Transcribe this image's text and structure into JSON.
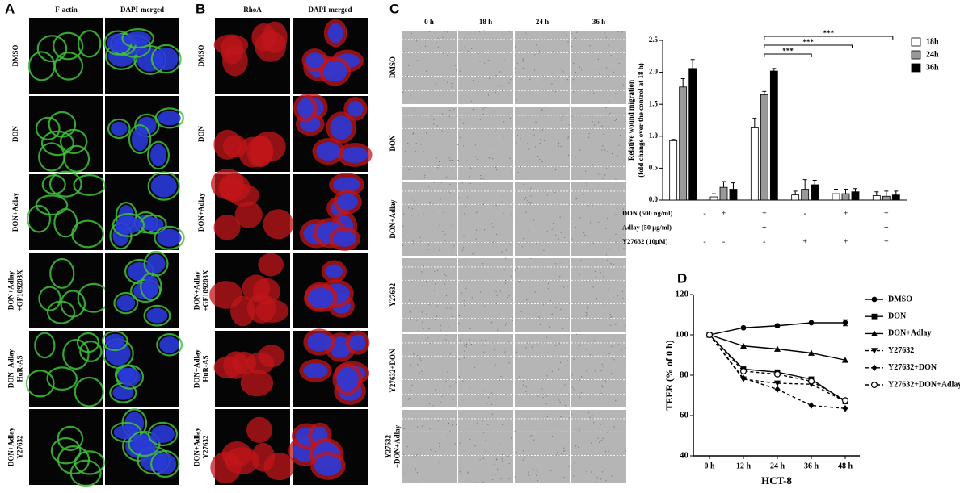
{
  "panel_a": {
    "letter": "A",
    "columns": [
      "F-actin",
      "DAPI-merged"
    ],
    "rows": [
      [
        "DMSO"
      ],
      [
        "DON"
      ],
      [
        "DON+Adlay"
      ],
      [
        "DON+Adlay",
        "+GF109203X"
      ],
      [
        "DON+Adlay",
        "HuR-AS"
      ],
      [
        "DON+Adlay",
        "Y27632"
      ]
    ]
  },
  "panel_b": {
    "letter": "B",
    "columns": [
      "RhoA",
      "DAPI-merged"
    ],
    "rows": [
      [
        "DMSO"
      ],
      [
        "DON"
      ],
      [
        "DON+Adlay"
      ],
      [
        "DON+Adlay",
        "+GF109203X"
      ],
      [
        "DON+Adlay",
        "HuR-AS"
      ],
      [
        "DON+Adlay",
        "Y27632"
      ]
    ]
  },
  "panel_c": {
    "letter": "C",
    "columns": [
      "0 h",
      "18 h",
      "24 h",
      "36 h"
    ],
    "rows": [
      [
        "DMSO"
      ],
      [
        "DON"
      ],
      [
        "DON+Adlay"
      ],
      [
        "Y27632"
      ],
      [
        "Y27632+DON"
      ],
      [
        "Y27632",
        "+DON+Adlay"
      ]
    ]
  },
  "panel_d": {
    "letter": "D"
  },
  "chart_data": [
    {
      "type": "bar",
      "ylabel": [
        "Relative wound migration",
        "(fold change over the control at 18 h)"
      ],
      "categories": [
        null,
        null,
        null,
        null,
        null,
        null
      ],
      "series": [
        {
          "name": "18h",
          "color": "#ffffff",
          "values": [
            0.93,
            0.05,
            1.13,
            0.08,
            0.1,
            0.07
          ],
          "errors": [
            0.02,
            0.05,
            0.15,
            0.06,
            0.07,
            0.06
          ]
        },
        {
          "name": "24h",
          "color": "#999999",
          "values": [
            1.77,
            0.2,
            1.65,
            0.17,
            0.1,
            0.06
          ],
          "errors": [
            0.13,
            0.09,
            0.05,
            0.15,
            0.07,
            0.08
          ]
        },
        {
          "name": "36h",
          "color": "#000000",
          "values": [
            2.06,
            0.17,
            2.02,
            0.24,
            0.13,
            0.08
          ],
          "errors": [
            0.14,
            0.1,
            0.04,
            0.07,
            0.05,
            0.06
          ]
        }
      ],
      "ylim": [
        0,
        2.5
      ],
      "yticks": [
        {
          "value": 0,
          "label": "0.0"
        },
        0.5,
        {
          "value": 1,
          "label": "1.0"
        },
        1.5,
        {
          "value": 2,
          "label": "2.0"
        },
        2.5
      ],
      "legend": "upper right",
      "annotations": [
        "***",
        "***",
        "***"
      ],
      "conditions": [
        {
          "label": "DON (500 ng/ml)",
          "signs": [
            "-",
            "+",
            "+",
            "-",
            "+",
            "+"
          ]
        },
        {
          "label": "Adlay (50 μg/ml)",
          "signs": [
            "-",
            "-",
            "+",
            "-",
            "-",
            "+"
          ]
        },
        {
          "label": "Y27632 (10μM)",
          "signs": [
            "-",
            "-",
            "-",
            "+",
            "+",
            "+"
          ]
        }
      ]
    },
    {
      "type": "line",
      "xlabel": "HCT-8",
      "ylabel": "TEER (% of 0 h)",
      "categories": [
        "0 h",
        "12 h",
        "24 h",
        "36 h",
        "48 h"
      ],
      "ylim": [
        40,
        120
      ],
      "yticks": [
        40,
        60,
        80,
        100,
        120
      ],
      "legend": "right",
      "series": [
        {
          "name": "DMSO",
          "color": "#000000",
          "marker": "circle",
          "dashed": false,
          "values": [
            100,
            103.5,
            104.5,
            106,
            106
          ],
          "errors": [
            null,
            null,
            null,
            null,
            1.5
          ]
        },
        {
          "name": "DON",
          "color": "#000000",
          "marker": "square",
          "dashed": false,
          "values": [
            100,
            83,
            81.5,
            78,
            67
          ]
        },
        {
          "name": "DON+Adlay",
          "color": "#000000",
          "marker": "triangle",
          "dashed": false,
          "values": [
            100,
            94.5,
            93,
            91,
            87.5
          ]
        },
        {
          "name": "Y27632",
          "color": "#000000",
          "marker": "triangle-down",
          "dashed": true,
          "values": [
            100,
            78,
            76,
            75.5,
            67
          ]
        },
        {
          "name": "Y27632+DON",
          "color": "#000000",
          "marker": "diamond",
          "dashed": true,
          "values": [
            100,
            78.5,
            73,
            65,
            63.5
          ]
        },
        {
          "name": "Y27632+DON+Adlay",
          "color": "#000000",
          "marker": "open-circle",
          "dashed": true,
          "values": [
            100,
            82,
            80.5,
            77,
            67.5
          ]
        }
      ]
    }
  ]
}
